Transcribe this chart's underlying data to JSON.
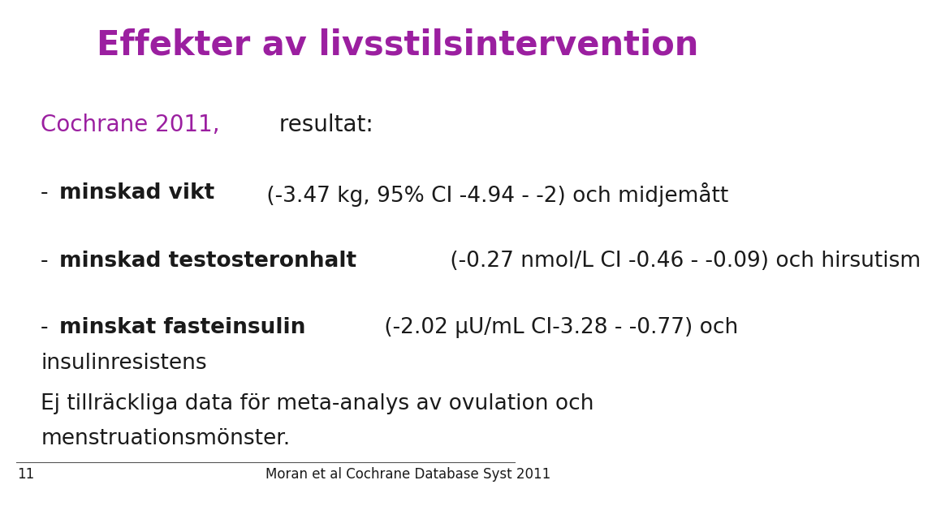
{
  "title": "Effekter av livsstilsintervention",
  "title_color": "#9B1FA0",
  "background_color": "#FFFFFF",
  "slide_number": "11",
  "footer_text": "Moran et al Cochrane Database Syst 2011",
  "subtitle_colored": "Cochrane 2011,",
  "subtitle_colored_color": "#9B1FA0",
  "subtitle_rest": " resultat:",
  "bullets": [
    {
      "bold_part": "minskad vikt",
      "normal_part": " (-3.47 kg, 95% CI -4.94 - -2) och midjemått"
    },
    {
      "bold_part": "minskad testosteronhalt",
      "normal_part": " (-0.27 nmol/L CI -0.46 - -0.09) och hirsutism"
    },
    {
      "bold_part": "minskat fasteinsulin",
      "normal_part_line1": " (-2.02 μU/mL CI-3.28 - -0.77) och",
      "normal_part_line2": "insulinresistens"
    }
  ],
  "extra_line1": "Ej tillräckliga data för meta-analys av ovulation och",
  "extra_line2": "menstruationsmönster.",
  "font_size_title": 30,
  "font_size_subtitle": 20,
  "font_size_bullets": 19,
  "font_size_footer": 12,
  "text_color": "#1a1a1a"
}
